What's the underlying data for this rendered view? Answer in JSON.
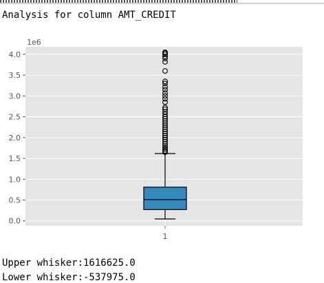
{
  "output": {
    "title_line": "Analysis for column AMT_CREDIT",
    "upper_whisker_line": "Upper whisker:1616625.0",
    "lower_whisker_line": "Lower whisker:-537975.0"
  },
  "colors": {
    "panel": "#e5e5e5",
    "grid": "#ffffff",
    "box_fill": "#348abd",
    "line": "#000000",
    "tick_text": "#555555"
  },
  "chart_data": {
    "type": "boxplot",
    "title": "",
    "xlabel": "",
    "ylabel": "",
    "y_offset_label": "1e6",
    "ylim": [
      -0.12,
      4.18
    ],
    "y_ticks": [
      0.0,
      0.5,
      1.0,
      1.5,
      2.0,
      2.5,
      3.0,
      3.5,
      4.0
    ],
    "y_tick_labels": [
      "0.0",
      "0.5",
      "1.0",
      "1.5",
      "2.0",
      "2.5",
      "3.0",
      "3.5",
      "4.0"
    ],
    "x_tick_labels": [
      "1"
    ],
    "grid": true,
    "series": [
      {
        "whisker_low": 0.045,
        "q1": 0.27,
        "median": 0.51,
        "q3": 0.81,
        "whisker_high": 1.616625,
        "outliers": [
          1.65,
          1.68,
          1.72,
          1.76,
          1.8,
          1.85,
          1.9,
          1.95,
          2.0,
          2.05,
          2.1,
          2.15,
          2.2,
          2.25,
          2.3,
          2.35,
          2.4,
          2.45,
          2.5,
          2.56,
          2.62,
          2.68,
          2.72,
          2.85,
          2.93,
          3.0,
          3.07,
          3.15,
          3.22,
          3.3,
          3.35,
          3.6,
          3.82,
          3.9,
          3.95,
          4.0,
          4.03,
          4.05
        ]
      }
    ]
  }
}
